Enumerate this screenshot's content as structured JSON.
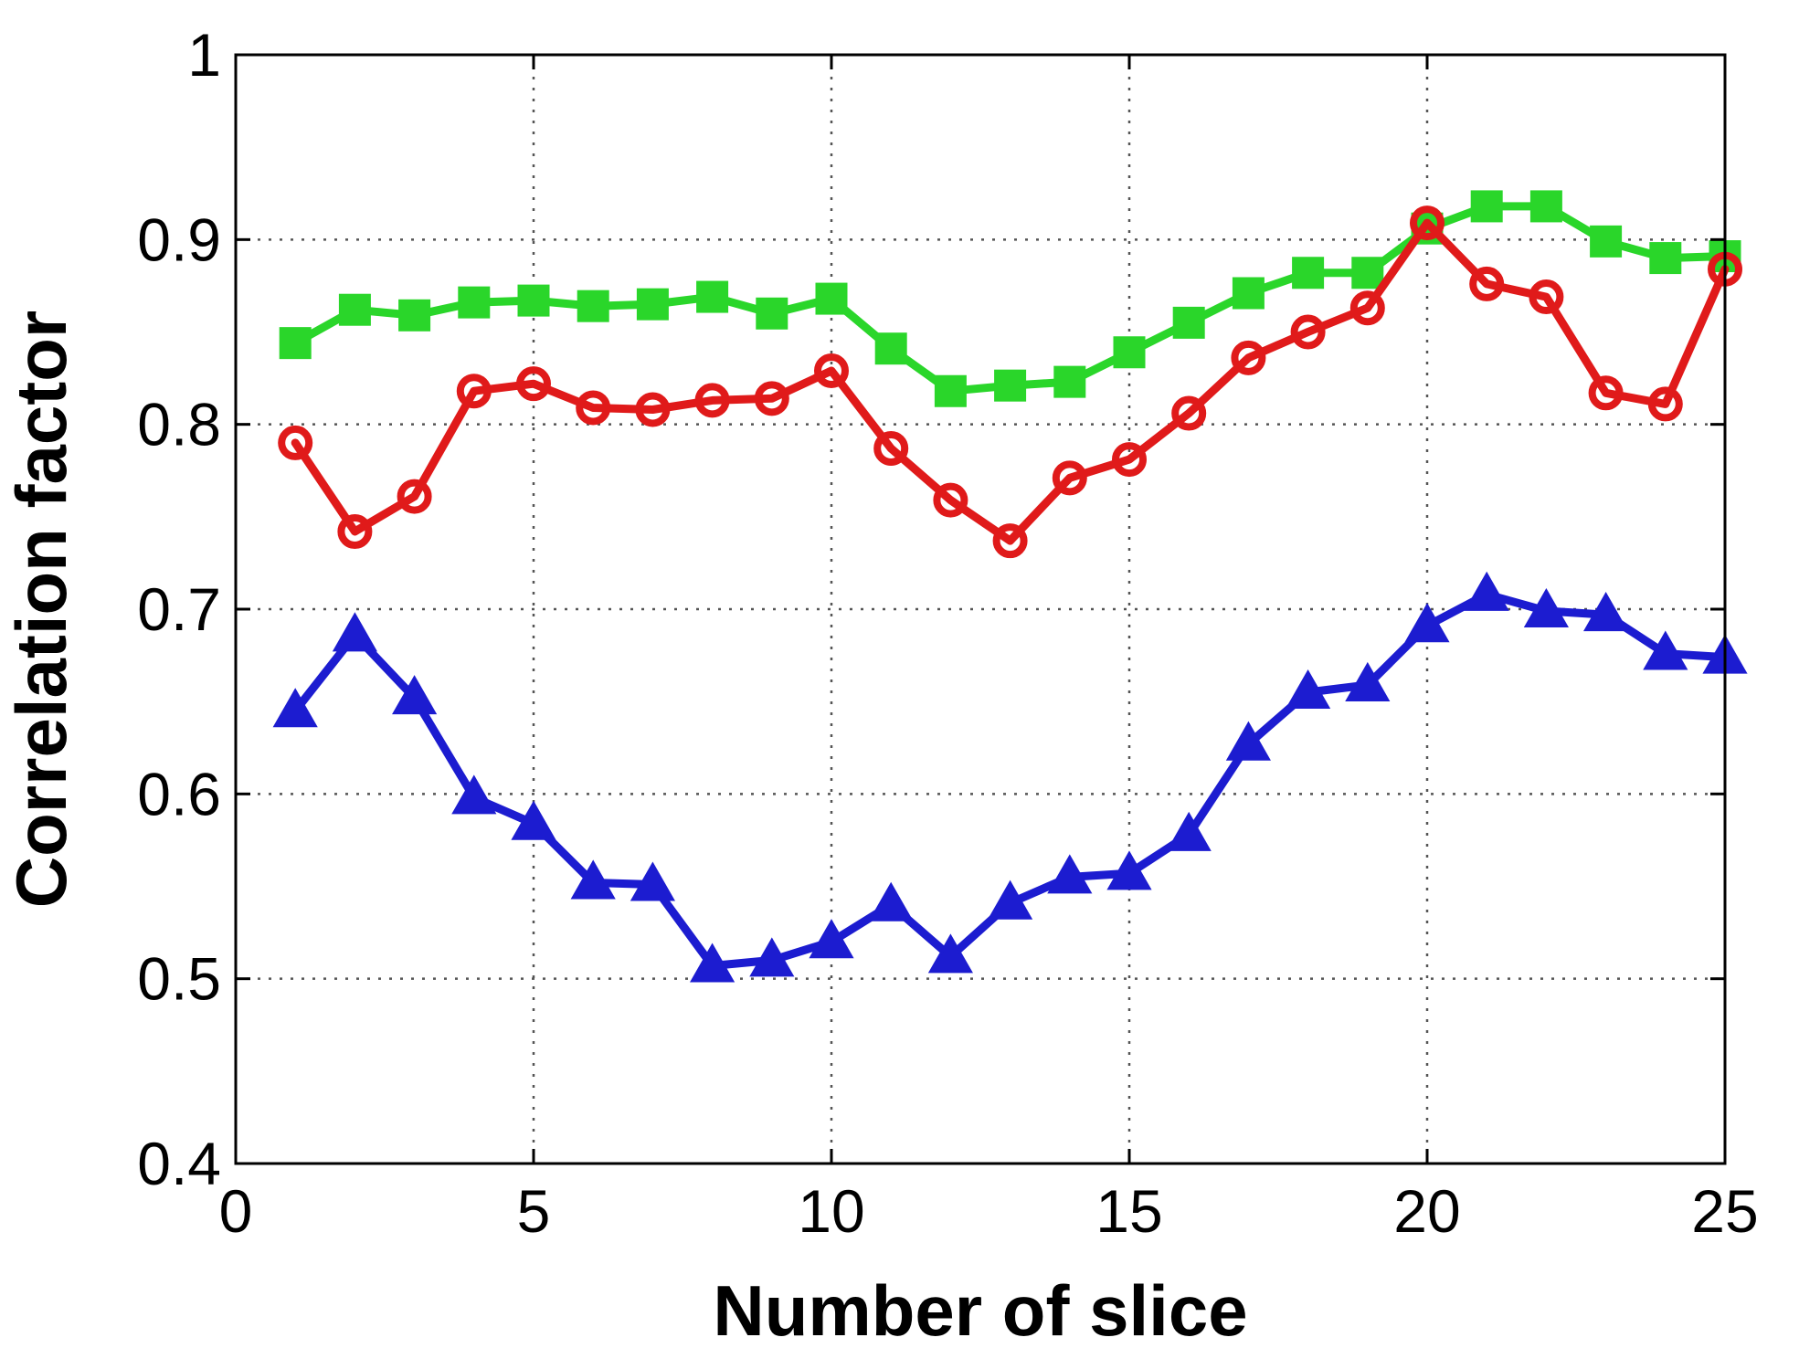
{
  "chart_data": {
    "type": "line",
    "xlabel": "Number of slice",
    "ylabel": "Correlation factor",
    "xlim": [
      0,
      25
    ],
    "ylim": [
      0.4,
      1
    ],
    "xticks": [
      0,
      5,
      10,
      15,
      20,
      25
    ],
    "yticks": [
      0.4,
      0.5,
      0.6,
      0.7,
      0.8,
      0.9,
      1
    ],
    "xtick_labels": [
      "0",
      "5",
      "10",
      "15",
      "20",
      "25"
    ],
    "ytick_labels": [
      "0.4",
      "0.5",
      "0.6",
      "0.7",
      "0.8",
      "0.9",
      "1"
    ],
    "grid": true,
    "x": [
      1,
      2,
      3,
      4,
      5,
      6,
      7,
      8,
      9,
      10,
      11,
      12,
      13,
      14,
      15,
      16,
      17,
      18,
      19,
      20,
      21,
      22,
      23,
      24,
      25
    ],
    "series": [
      {
        "color": "#2ad62a",
        "marker": "square",
        "values": [
          0.844,
          0.862,
          0.859,
          0.866,
          0.867,
          0.864,
          0.865,
          0.869,
          0.86,
          0.868,
          0.841,
          0.818,
          0.821,
          0.823,
          0.839,
          0.855,
          0.871,
          0.882,
          0.882,
          0.906,
          0.918,
          0.918,
          0.899,
          0.89,
          0.891
        ]
      },
      {
        "color": "#e01a1a",
        "marker": "circle",
        "values": [
          0.79,
          0.742,
          0.761,
          0.818,
          0.822,
          0.809,
          0.808,
          0.813,
          0.814,
          0.829,
          0.787,
          0.759,
          0.737,
          0.771,
          0.781,
          0.806,
          0.836,
          0.85,
          0.863,
          0.909,
          0.876,
          0.869,
          0.817,
          0.811,
          0.884
        ]
      },
      {
        "color": "#1c1cd0",
        "marker": "triangle",
        "values": [
          0.645,
          0.686,
          0.652,
          0.598,
          0.584,
          0.552,
          0.551,
          0.507,
          0.51,
          0.52,
          0.54,
          0.512,
          0.541,
          0.555,
          0.557,
          0.578,
          0.627,
          0.655,
          0.659,
          0.691,
          0.708,
          0.699,
          0.697,
          0.676,
          0.674
        ]
      }
    ]
  }
}
